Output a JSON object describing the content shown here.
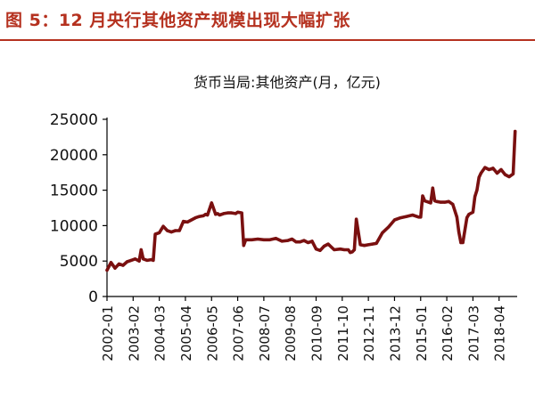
{
  "figure_title": "图 5：12 月央行其他资产规模出现大幅扩张",
  "colors": {
    "title": "#b5311f",
    "series": "#7a1010",
    "axis": "#000000",
    "rule": "#b5311f"
  },
  "chart_data": {
    "type": "line",
    "title": "货币当局:其他资产(月，亿元)",
    "xlabel": "",
    "ylabel": "",
    "ylim": [
      0,
      25000
    ],
    "yticks": [
      0,
      5000,
      10000,
      15000,
      20000,
      25000
    ],
    "xtick_labels": [
      "2002-01",
      "2003-02",
      "2004-03",
      "2005-04",
      "2006-05",
      "2007-06",
      "2008-07",
      "2009-08",
      "2010-09",
      "2011-10",
      "2012-11",
      "2013-12",
      "2015-01",
      "2016-02",
      "2017-03",
      "2018-04"
    ],
    "x_range": [
      "2002-01",
      "2019-01"
    ],
    "grid": false,
    "legend": "none",
    "series": [
      {
        "name": "",
        "x": [
          "2002-01",
          "2002-03",
          "2002-05",
          "2002-07",
          "2002-09",
          "2002-11",
          "2003-01",
          "2003-03",
          "2003-05",
          "2003-06",
          "2003-07",
          "2003-09",
          "2003-11",
          "2003-12",
          "2004-01",
          "2004-03",
          "2004-05",
          "2004-07",
          "2004-09",
          "2004-11",
          "2005-01",
          "2005-03",
          "2005-05",
          "2005-07",
          "2005-09",
          "2005-11",
          "2006-01",
          "2006-02",
          "2006-03",
          "2006-05",
          "2006-07",
          "2006-08",
          "2006-09",
          "2006-11",
          "2007-01",
          "2007-03",
          "2007-05",
          "2007-06",
          "2007-08",
          "2007-09",
          "2007-10",
          "2008-01",
          "2008-04",
          "2008-07",
          "2008-10",
          "2009-01",
          "2009-04",
          "2009-07",
          "2009-09",
          "2009-11",
          "2010-01",
          "2010-03",
          "2010-05",
          "2010-07",
          "2010-09",
          "2010-11",
          "2011-01",
          "2011-03",
          "2011-06",
          "2011-09",
          "2011-11",
          "2011-12",
          "2012-01",
          "2012-02",
          "2012-03",
          "2012-04",
          "2012-05",
          "2012-07",
          "2012-09",
          "2012-11",
          "2013-01",
          "2013-03",
          "2013-06",
          "2013-09",
          "2013-12",
          "2014-03",
          "2014-06",
          "2014-09",
          "2014-12",
          "2015-01",
          "2015-02",
          "2015-03",
          "2015-04",
          "2015-06",
          "2015-07",
          "2015-08",
          "2015-09",
          "2015-11",
          "2016-01",
          "2016-03",
          "2016-05",
          "2016-07",
          "2016-08",
          "2016-09",
          "2016-10",
          "2016-12",
          "2017-01",
          "2017-03",
          "2017-04",
          "2017-05",
          "2017-06",
          "2017-07",
          "2017-09",
          "2017-11",
          "2018-01",
          "2018-03",
          "2018-05",
          "2018-07",
          "2018-09",
          "2018-11",
          "2018-12"
        ],
        "values": [
          3700,
          4800,
          4000,
          4600,
          4400,
          4900,
          5100,
          5300,
          5000,
          6600,
          5300,
          5100,
          5200,
          5100,
          8800,
          9000,
          9900,
          9300,
          9100,
          9300,
          9300,
          10600,
          10500,
          10800,
          11100,
          11300,
          11400,
          11600,
          11500,
          13200,
          11600,
          11700,
          11500,
          11700,
          11800,
          11800,
          11700,
          11900,
          11800,
          7200,
          8000,
          8000,
          8100,
          8000,
          8000,
          8200,
          7800,
          7900,
          8100,
          7700,
          7700,
          7900,
          7600,
          7800,
          6700,
          6500,
          7100,
          7400,
          6600,
          6700,
          6600,
          6600,
          6600,
          6200,
          6300,
          6600,
          10900,
          7300,
          7200,
          7300,
          7400,
          7500,
          9000,
          9800,
          10800,
          11100,
          11300,
          11500,
          11200,
          11200,
          14200,
          13500,
          13400,
          13200,
          15300,
          13500,
          13400,
          13300,
          13300,
          13400,
          13000,
          11200,
          9100,
          7600,
          7600,
          11100,
          11600,
          11900,
          14100,
          15000,
          16800,
          17400,
          18200,
          17900,
          18100,
          17400,
          17900,
          17200,
          16900,
          17300,
          23300
        ]
      }
    ]
  }
}
